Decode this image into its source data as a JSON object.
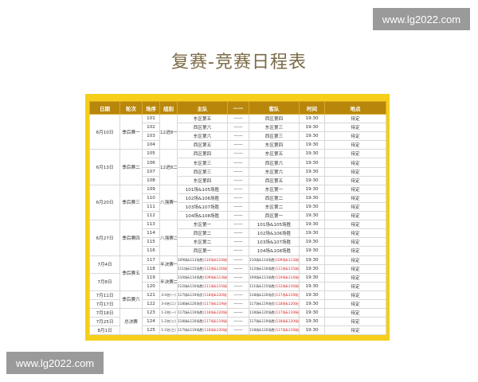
{
  "watermark_top": "www.lg2022.com",
  "watermark_bottom": "www.lg2022.com",
  "title": "复赛-竞赛日程表",
  "headers": [
    "日期",
    "轮次",
    "场序",
    "组别",
    "主队",
    "——",
    "客队",
    "时间",
    "地点"
  ],
  "dates": [
    {
      "label": "6月10日",
      "span": 4
    },
    {
      "label": "6月13日",
      "span": 4
    },
    {
      "label": "6月20日",
      "span": 4
    },
    {
      "label": "6月27日",
      "span": 4
    },
    {
      "label": "7月4日",
      "span": 2
    },
    {
      "label": "7月8日",
      "span": 2
    },
    {
      "label": "7月11日",
      "span": 1
    },
    {
      "label": "7月17日",
      "span": 1
    },
    {
      "label": "7月18日",
      "span": 1
    },
    {
      "label": "7月25日",
      "span": 1
    },
    {
      "label": "8月1日",
      "span": 1
    }
  ],
  "rounds": [
    {
      "label": "季后赛一",
      "span": 4
    },
    {
      "label": "季后赛二",
      "span": 4
    },
    {
      "label": "季后赛三",
      "span": 4
    },
    {
      "label": "季后赛四",
      "span": 4
    },
    {
      "label": "季后赛五",
      "span": 4
    },
    {
      "label": "季后赛六",
      "span": 2
    },
    {
      "label": "总决赛",
      "span": 3
    }
  ],
  "groups": [
    {
      "label": "12进8一",
      "span": 4
    },
    {
      "label": "12进8二",
      "span": 4
    },
    {
      "label": "八强赛一",
      "span": 4
    },
    {
      "label": "八强赛二",
      "span": 4
    },
    {
      "label": "半决赛一",
      "span": 2
    },
    {
      "label": "半决赛二",
      "span": 2
    },
    {
      "label": "3-4名(一)",
      "span": 1
    },
    {
      "label": "3-4名(二)",
      "span": 1
    },
    {
      "label": "1-2名(一)",
      "span": 1
    },
    {
      "label": "1-2名(二)",
      "span": 1
    },
    {
      "label": "1-2名(三)",
      "span": 1
    }
  ],
  "rows": [
    {
      "no": "101",
      "home": "东区第五",
      "away": "西区第四",
      "time": "19:30",
      "venue": "待定"
    },
    {
      "no": "102",
      "home": "西区第六",
      "away": "东区第三",
      "time": "19:30",
      "venue": "待定"
    },
    {
      "no": "103",
      "home": "东区第六",
      "away": "西区第三",
      "time": "19:30",
      "venue": "待定"
    },
    {
      "no": "104",
      "home": "西区第五",
      "away": "东区第四",
      "time": "19:30",
      "venue": "待定"
    },
    {
      "no": "105",
      "home": "西区第四",
      "away": "东区第五",
      "time": "19:30",
      "venue": "待定"
    },
    {
      "no": "106",
      "home": "东区第三",
      "away": "西区第六",
      "time": "19:30",
      "venue": "待定"
    },
    {
      "no": "107",
      "home": "西区第三",
      "away": "东区第六",
      "time": "19:30",
      "venue": "待定"
    },
    {
      "no": "108",
      "home": "东区第四",
      "away": "西区第五",
      "time": "19:30",
      "venue": "待定"
    },
    {
      "no": "109",
      "home": "101场&105场胜",
      "away": "东区第一",
      "time": "19:30",
      "venue": "待定"
    },
    {
      "no": "110",
      "home": "102场&106场胜",
      "away": "西区第二",
      "time": "19:30",
      "venue": "待定"
    },
    {
      "no": "111",
      "home": "103场&107场胜",
      "away": "东区第二",
      "time": "19:30",
      "venue": "待定"
    },
    {
      "no": "112",
      "home": "104场&108场胜",
      "away": "西区第一",
      "time": "19:30",
      "venue": "待定"
    },
    {
      "no": "113",
      "home": "东区第一",
      "away": "101场&105场胜",
      "time": "19:30",
      "venue": "待定"
    },
    {
      "no": "114",
      "home": "西区第二",
      "away": "102场&106场胜",
      "time": "19:30",
      "venue": "待定"
    },
    {
      "no": "115",
      "home": "东区第二",
      "away": "103场&107场胜",
      "time": "19:30",
      "venue": "待定"
    },
    {
      "no": "116",
      "home": "西区第一",
      "away": "104场&108场胜",
      "time": "19:30",
      "venue": "待定"
    },
    {
      "no": "117",
      "home": "109场&113场胜",
      "home_alt": "(110场&114场胜)",
      "away": "110场&114场胜",
      "away_alt": "(109场&113场胜)",
      "time": "19:30",
      "venue": "待定"
    },
    {
      "no": "118",
      "home": "111场&115场胜",
      "home_alt": "(112场&116场胜)",
      "away": "112场&116场胜",
      "away_alt": "(111场&115场胜)",
      "time": "19:30",
      "venue": "待定"
    },
    {
      "no": "119",
      "home": "110场&114场胜",
      "home_alt": "(109场&113场胜)",
      "away": "109场&113场胜",
      "away_alt": "(110场&114场胜)",
      "time": "19:30",
      "venue": "待定"
    },
    {
      "no": "120",
      "home": "112场&116场胜",
      "home_alt": "(111场&115场胜)",
      "away": "111场&115场胜",
      "away_alt": "(112场&116场胜)",
      "time": "19:30",
      "venue": "待定"
    },
    {
      "no": "121",
      "home": "117场&119场负",
      "home_alt": "(118场&120场负)",
      "away": "118场&120场负",
      "away_alt": "(117场&119场负)",
      "time": "19:30",
      "venue": "待定"
    },
    {
      "no": "122",
      "home": "118场&120场负",
      "home_alt": "(117场&119场负)",
      "away": "117场&119场负",
      "away_alt": "(118场&120场负)",
      "time": "19:30",
      "venue": "待定"
    },
    {
      "no": "123",
      "home": "117场&119场胜",
      "home_alt": "(118场&120场胜)",
      "away": "118场&120场胜",
      "away_alt": "(117场&119场胜)",
      "time": "19:30",
      "venue": "待定"
    },
    {
      "no": "124",
      "home": "118场&120场胜",
      "home_alt": "(117场&119场胜)",
      "away": "117场&119场胜",
      "away_alt": "(118场&120场胜)",
      "time": "19:30",
      "venue": "待定"
    },
    {
      "no": "125",
      "home": "117场&119场胜",
      "home_alt": "(118场&120场胜)",
      "away": "118场&120场胜",
      "away_alt": "(117场&119场胜)",
      "time": "19:30",
      "venue": "待定"
    }
  ],
  "dash": "——",
  "colors": {
    "frame": "#f5cf1a",
    "header": "#b8860b",
    "title": "#7a6a45",
    "alt_text": "#d42020"
  }
}
